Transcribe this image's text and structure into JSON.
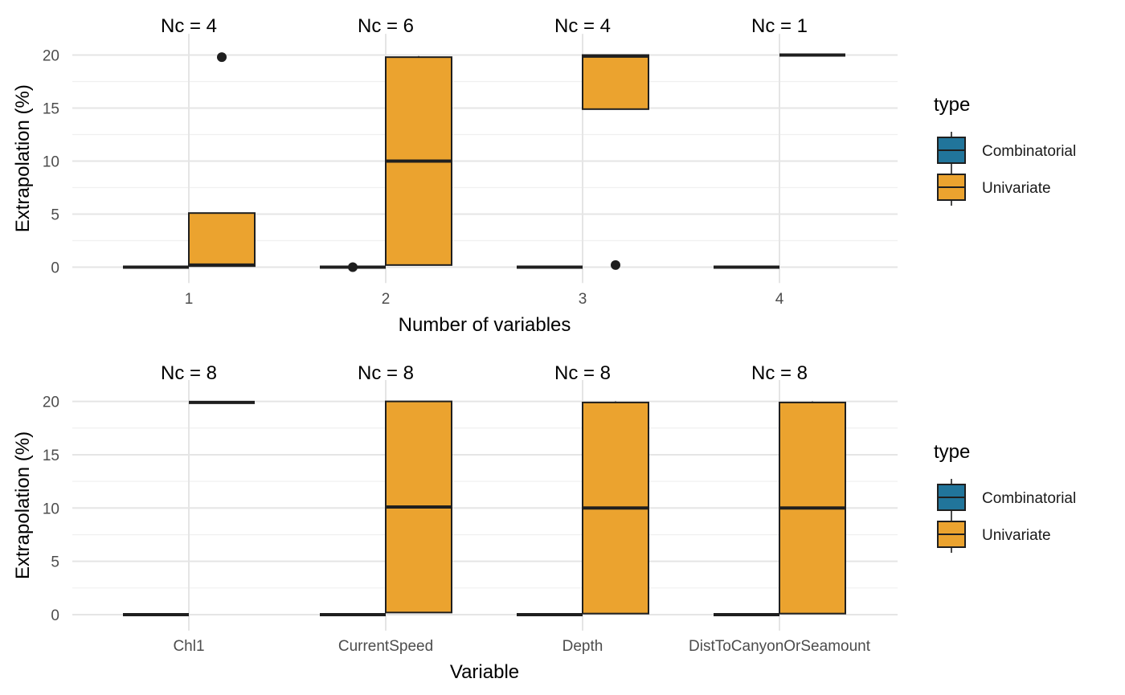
{
  "colors": {
    "Combinatorial": "#21759b",
    "Univariate": "#eba32f",
    "grid_major": "#e5e5e5",
    "grid_minor": "#f0f0f0",
    "box_stroke": "#1f1f1f"
  },
  "legend": {
    "title": "type",
    "items": [
      "Combinatorial",
      "Univariate"
    ]
  },
  "chart_data": [
    {
      "type": "boxplot",
      "xlabel": "Number of variables",
      "ylabel": "Extrapolation (%)",
      "ylim": [
        -1.5,
        22
      ],
      "yticks": [
        0,
        5,
        10,
        15,
        20
      ],
      "categories": [
        "1",
        "2",
        "3",
        "4"
      ],
      "annotations": [
        "Nc = 4",
        "Nc = 6",
        "Nc = 4",
        "Nc = 1"
      ],
      "series": [
        {
          "name": "Combinatorial",
          "boxes": [
            {
              "q1": 0,
              "median": 0,
              "q3": 0,
              "min": 0,
              "max": 0,
              "outliers": []
            },
            {
              "q1": 0,
              "median": 0,
              "q3": 0,
              "min": 0,
              "max": 0,
              "outliers": [
                0
              ]
            },
            {
              "q1": 0,
              "median": 0,
              "q3": 0,
              "min": 0,
              "max": 0,
              "outliers": []
            },
            {
              "q1": 0,
              "median": 0,
              "q3": 0,
              "min": 0,
              "max": 0,
              "outliers": []
            }
          ]
        },
        {
          "name": "Univariate",
          "boxes": [
            {
              "q1": 0.1,
              "median": 0.2,
              "q3": 5.1,
              "min": 0.1,
              "max": 5.1,
              "outliers": [
                19.8
              ]
            },
            {
              "q1": 0.2,
              "median": 10.0,
              "q3": 19.8,
              "min": 0.2,
              "max": 19.9,
              "outliers": []
            },
            {
              "q1": 14.9,
              "median": 19.9,
              "q3": 20.0,
              "min": 14.9,
              "max": 20.0,
              "outliers": [
                0.2
              ]
            },
            {
              "q1": 20.0,
              "median": 20.0,
              "q3": 20.0,
              "min": 20.0,
              "max": 20.0,
              "outliers": []
            }
          ]
        }
      ]
    },
    {
      "type": "boxplot",
      "xlabel": "Variable",
      "ylabel": "Extrapolation (%)",
      "ylim": [
        -1.5,
        22
      ],
      "yticks": [
        0,
        5,
        10,
        15,
        20
      ],
      "categories": [
        "Chl1",
        "CurrentSpeed",
        "Depth",
        "DistToCanyonOrSeamount"
      ],
      "annotations": [
        "Nc = 8",
        "Nc = 8",
        "Nc = 8",
        "Nc = 8"
      ],
      "series": [
        {
          "name": "Combinatorial",
          "boxes": [
            {
              "q1": 0,
              "median": 0,
              "q3": 0,
              "min": 0,
              "max": 0,
              "outliers": []
            },
            {
              "q1": 0,
              "median": 0,
              "q3": 0,
              "min": 0,
              "max": 0,
              "outliers": []
            },
            {
              "q1": 0,
              "median": 0,
              "q3": 0,
              "min": 0,
              "max": 0,
              "outliers": []
            },
            {
              "q1": 0,
              "median": 0,
              "q3": 0,
              "min": 0,
              "max": 0,
              "outliers": []
            }
          ]
        },
        {
          "name": "Univariate",
          "boxes": [
            {
              "q1": 19.9,
              "median": 19.9,
              "q3": 19.9,
              "min": 19.9,
              "max": 19.9,
              "outliers": []
            },
            {
              "q1": 0.2,
              "median": 10.1,
              "q3": 20.0,
              "min": 0.2,
              "max": 20.0,
              "outliers": []
            },
            {
              "q1": 0.1,
              "median": 10.0,
              "q3": 19.9,
              "min": 0.1,
              "max": 20.0,
              "outliers": []
            },
            {
              "q1": 0.1,
              "median": 10.0,
              "q3": 19.9,
              "min": 0.1,
              "max": 20.0,
              "outliers": []
            }
          ]
        }
      ]
    }
  ]
}
